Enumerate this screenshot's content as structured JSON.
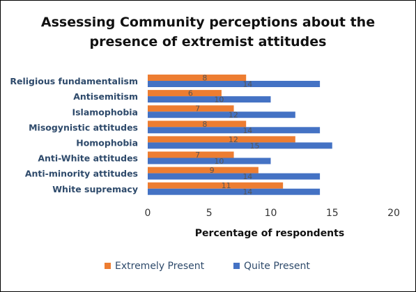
{
  "chart_data": {
    "type": "bar",
    "orientation": "horizontal",
    "title_line1": "Assessing Community perceptions about the",
    "title_line2": "presence of extremist attitudes",
    "xlabel": "Percentage of respondents",
    "ylabel": "",
    "xlim": [
      0,
      20
    ],
    "xticks": [
      "0",
      "5",
      "10",
      "15",
      "20"
    ],
    "categories": [
      "Religious fundamentalism",
      "Antisemitism",
      "Islamophobia",
      "Misogynistic attitudes",
      "Homophobia",
      "Anti-White attitudes",
      "Anti-minority attitudes",
      "White supremacy"
    ],
    "series": [
      {
        "name": "Extremely Present",
        "color": "#ED7D31",
        "values": [
          8,
          6,
          7,
          8,
          12,
          7,
          9,
          11
        ]
      },
      {
        "name": "Quite Present",
        "color": "#4472C4",
        "values": [
          14,
          10,
          12,
          14,
          15,
          10,
          14,
          14
        ]
      }
    ],
    "grid": false,
    "legend_position": "bottom"
  }
}
